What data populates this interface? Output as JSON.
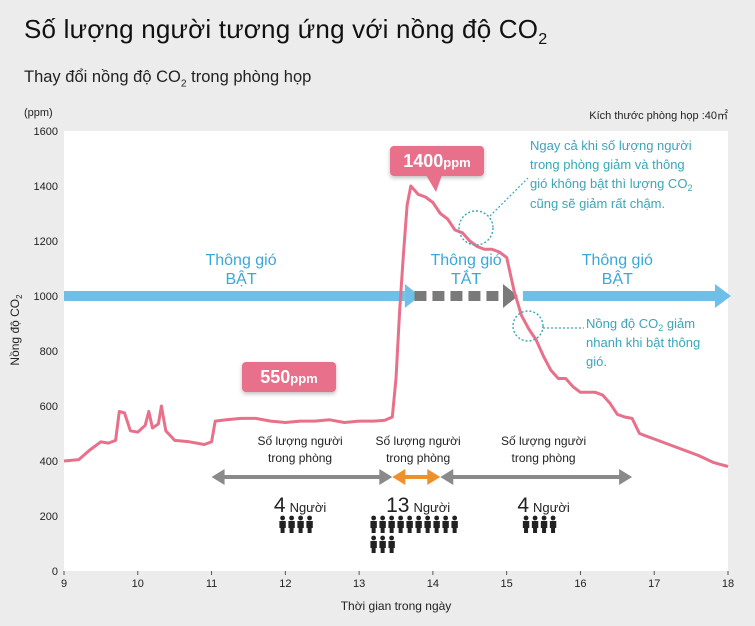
{
  "header": {
    "title_main": "Số lượng người tương ứng với nồng độ CO",
    "title_sub": "2",
    "subtitle_main": "Thay đổi nồng độ CO",
    "subtitle_sub": "2",
    "subtitle_rest": " trong phòng họp"
  },
  "chart_data": {
    "type": "line",
    "x_unit_label": "Thời gian trong ngày",
    "y_unit_label": "(ppm)",
    "ylabel_main": "Nồng độ CO",
    "ylabel_sub": "2",
    "room_size_label": "Kích thước phòng họp :40㎡",
    "xlim": [
      9,
      18
    ],
    "ylim": [
      0,
      1600
    ],
    "x_ticks": [
      9,
      10,
      11,
      12,
      13,
      14,
      15,
      16,
      17,
      18
    ],
    "y_ticks": [
      0,
      200,
      400,
      600,
      800,
      1000,
      1200,
      1400,
      1600
    ],
    "line_color": "#e8708a",
    "series": [
      {
        "points": [
          [
            9.0,
            400
          ],
          [
            9.2,
            405
          ],
          [
            9.35,
            440
          ],
          [
            9.5,
            470
          ],
          [
            9.6,
            465
          ],
          [
            9.7,
            475
          ],
          [
            9.75,
            580
          ],
          [
            9.82,
            575
          ],
          [
            9.9,
            510
          ],
          [
            10.0,
            505
          ],
          [
            10.1,
            530
          ],
          [
            10.15,
            580
          ],
          [
            10.2,
            520
          ],
          [
            10.28,
            535
          ],
          [
            10.32,
            600
          ],
          [
            10.38,
            510
          ],
          [
            10.5,
            475
          ],
          [
            10.7,
            470
          ],
          [
            10.9,
            460
          ],
          [
            11.0,
            470
          ],
          [
            11.05,
            545
          ],
          [
            11.2,
            550
          ],
          [
            11.4,
            555
          ],
          [
            11.6,
            555
          ],
          [
            11.8,
            545
          ],
          [
            12.0,
            540
          ],
          [
            12.2,
            545
          ],
          [
            12.4,
            545
          ],
          [
            12.6,
            550
          ],
          [
            12.8,
            540
          ],
          [
            13.0,
            545
          ],
          [
            13.2,
            545
          ],
          [
            13.35,
            548
          ],
          [
            13.45,
            560
          ],
          [
            13.5,
            700
          ],
          [
            13.55,
            950
          ],
          [
            13.6,
            1150
          ],
          [
            13.65,
            1330
          ],
          [
            13.7,
            1400
          ],
          [
            13.8,
            1370
          ],
          [
            13.9,
            1360
          ],
          [
            14.0,
            1340
          ],
          [
            14.1,
            1300
          ],
          [
            14.2,
            1280
          ],
          [
            14.3,
            1240
          ],
          [
            14.4,
            1230
          ],
          [
            14.5,
            1200
          ],
          [
            14.6,
            1180
          ],
          [
            14.7,
            1170
          ],
          [
            14.8,
            1170
          ],
          [
            14.9,
            1160
          ],
          [
            15.0,
            1140
          ],
          [
            15.1,
            1020
          ],
          [
            15.2,
            930
          ],
          [
            15.3,
            880
          ],
          [
            15.4,
            840
          ],
          [
            15.5,
            780
          ],
          [
            15.6,
            730
          ],
          [
            15.7,
            700
          ],
          [
            15.8,
            700
          ],
          [
            15.9,
            670
          ],
          [
            16.0,
            650
          ],
          [
            16.1,
            650
          ],
          [
            16.2,
            650
          ],
          [
            16.3,
            640
          ],
          [
            16.4,
            610
          ],
          [
            16.5,
            570
          ],
          [
            16.6,
            560
          ],
          [
            16.7,
            555
          ],
          [
            16.8,
            500
          ],
          [
            16.9,
            490
          ],
          [
            17.0,
            480
          ],
          [
            17.2,
            460
          ],
          [
            17.4,
            440
          ],
          [
            17.6,
            420
          ],
          [
            17.8,
            395
          ],
          [
            18.0,
            380
          ]
        ]
      }
    ],
    "ventilation": [
      {
        "line1": "Thông gió",
        "line2": "BẬT"
      },
      {
        "line1": "Thông gió",
        "line2": "TẮT"
      },
      {
        "line1": "Thông gió",
        "line2": "BẬT"
      }
    ],
    "callouts": [
      {
        "text": "1400ppm",
        "value": 1400,
        "unit_text": "ppm",
        "num_text": "1400"
      },
      {
        "text": "550ppm",
        "value": 550,
        "unit_text": "ppm",
        "num_text": "550"
      }
    ],
    "annotations": {
      "slow": {
        "line1": "Ngay cả khi số lượng người",
        "line2": "trong phòng giảm và thông",
        "line3a": "gió không bật thì lượng CO",
        "line3sub": "2",
        "line4": "cũng sẽ giảm rất chậm."
      },
      "fast": {
        "line1a": "Nồng độ CO",
        "line1sub": "2",
        "line1b": " giảm",
        "line2": "nhanh khi bật thông",
        "line3": "gió."
      }
    },
    "occupancy": [
      {
        "label1": "Số lượng người",
        "label2": "trong phòng",
        "count": "4",
        "unit": "Người",
        "x_from": 11.0,
        "x_to": 13.45
      },
      {
        "label1": "Số lượng người",
        "label2": "trong phòng",
        "count": "13",
        "unit": "Người",
        "x_from": 13.45,
        "x_to": 14.1
      },
      {
        "label1": "Số lượng người",
        "label2": "trong phòng",
        "count": "4",
        "unit": "Người",
        "x_from": 14.1,
        "x_to": 16.7
      }
    ],
    "colors": {
      "line": "#e8708a",
      "vent_on": "#6ec0e8",
      "vent_off": "#7a7a7a",
      "occupancy_gray": "#8a8a8a",
      "occupancy_orange": "#f0902a",
      "annotation_teal": "#39a6b8",
      "vent_text": "#3ba7d9"
    },
    "grid": false
  }
}
